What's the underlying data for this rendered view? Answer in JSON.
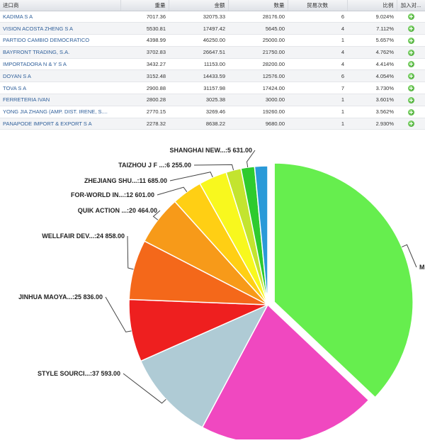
{
  "table": {
    "headers": [
      "进口商",
      "重量",
      "金额",
      "数量",
      "贸易次数",
      "比例",
      "加入对..."
    ],
    "rows": [
      {
        "name": "KADIMA S A",
        "weight": "7017.36",
        "amount": "32075.33",
        "quantity": "28176.00",
        "trades": "6",
        "ratio": "9.024%"
      },
      {
        "name": "VISION ACOSTA ZHENG S A",
        "weight": "5530.81",
        "amount": "17497.42",
        "quantity": "5645.00",
        "trades": "4",
        "ratio": "7.112%"
      },
      {
        "name": "PARTIDO CAMBIO DEMOCRATICO",
        "weight": "4398.99",
        "amount": "46250.00",
        "quantity": "25000.00",
        "trades": "1",
        "ratio": "5.657%"
      },
      {
        "name": "BAYFRONT TRADING, S.A.",
        "weight": "3702.83",
        "amount": "26647.51",
        "quantity": "21750.00",
        "trades": "4",
        "ratio": "4.762%"
      },
      {
        "name": "IMPORTADORA N & Y S A",
        "weight": "3432.27",
        "amount": "11153.00",
        "quantity": "28200.00",
        "trades": "4",
        "ratio": "4.414%"
      },
      {
        "name": "DOYAN S A",
        "weight": "3152.48",
        "amount": "14433.59",
        "quantity": "12576.00",
        "trades": "6",
        "ratio": "4.054%"
      },
      {
        "name": "TOVA S A",
        "weight": "2900.88",
        "amount": "31157.98",
        "quantity": "17424.00",
        "trades": "7",
        "ratio": "3.730%"
      },
      {
        "name": "FERRETERIA IVAN",
        "weight": "2800.28",
        "amount": "3025.38",
        "quantity": "3000.00",
        "trades": "1",
        "ratio": "3.601%"
      },
      {
        "name": "YONG JIA ZHANG (AMP. DIST. IRENE, S....",
        "weight": "2770.15",
        "amount": "3269.46",
        "quantity": "19260.00",
        "trades": "1",
        "ratio": "3.562%"
      },
      {
        "name": "PANAPODE IMPORT & EXPORT S A",
        "weight": "2278.32",
        "amount": "8638.22",
        "quantity": "9680.00",
        "trades": "1",
        "ratio": "2.930%"
      }
    ],
    "add_icon": "plus-circle-icon"
  },
  "chart_data": {
    "type": "pie",
    "title": "",
    "slices": [
      {
        "label": "M",
        "value": 132000,
        "value_text": "",
        "color": "#66ee4e"
      },
      {
        "label": "",
        "value": 74000,
        "value_text": "",
        "color": "#f048c0"
      },
      {
        "label": "STYLE SOURCI...",
        "value": 37593,
        "value_text": "37 593.00",
        "color": "#afcbd5"
      },
      {
        "label": "JINHUA MAOYA...",
        "value": 25836,
        "value_text": "25 836.00",
        "color": "#ee1f1f"
      },
      {
        "label": "WELLFAIR DEV...",
        "value": 24858,
        "value_text": "24 858.00",
        "color": "#f4681a"
      },
      {
        "label": "QUIK ACTION ...",
        "value": 20464,
        "value_text": "20 464.00",
        "color": "#f79a19"
      },
      {
        "label": "FOR-WORLD IN...",
        "value": 12601,
        "value_text": "12 601.00",
        "color": "#ffcf14"
      },
      {
        "label": "ZHEJIANG SHU...",
        "value": 11685,
        "value_text": "11 685.00",
        "color": "#f8f81e"
      },
      {
        "label": "TAIZHOU J F ...",
        "value": 6255,
        "value_text": "6 255.00",
        "color": "#c3e42f"
      },
      {
        "label": "SHANGHAI NEW...",
        "value": 5631,
        "value_text": "5 631.00",
        "color": "#2ecb2e"
      },
      {
        "label": "",
        "value": 5400,
        "value_text": "",
        "color": "#2a9ad8"
      }
    ]
  }
}
